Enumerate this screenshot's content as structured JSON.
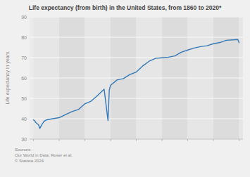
{
  "chart_data": {
    "type": "line",
    "title": "Life expectancy (from birth) in the United States, from 1860 to 2020*",
    "y_label": "Life expectancy in years",
    "source": "Sources:\nOur World in Data; Roser et al.\n© Statista 2024",
    "x": [
      1860,
      1861,
      1862,
      1863,
      1864,
      1865,
      1866,
      1867,
      1868,
      1869,
      1870,
      1875,
      1880,
      1885,
      1890,
      1895,
      1900,
      1905,
      1910,
      1915,
      1918,
      1919,
      1920,
      1925,
      1930,
      1935,
      1940,
      1945,
      1950,
      1955,
      1960,
      1965,
      1970,
      1975,
      1980,
      1985,
      1990,
      1995,
      2000,
      2005,
      2010,
      2015,
      2019,
      2020
    ],
    "values": [
      39.4,
      39.0,
      38.0,
      37.5,
      37.0,
      35.2,
      36.5,
      37.5,
      38.5,
      39.0,
      39.4,
      40.0,
      40.5,
      42.0,
      43.5,
      44.5,
      47.3,
      48.7,
      51.5,
      54.5,
      39.1,
      54.0,
      56.4,
      59.0,
      59.7,
      61.7,
      62.9,
      65.9,
      68.2,
      69.6,
      69.9,
      70.2,
      70.8,
      72.6,
      73.7,
      74.7,
      75.4,
      75.8,
      76.8,
      77.4,
      78.5,
      78.7,
      78.9,
      77.3
    ],
    "color": "#3479b7",
    "xlim": [
      1857,
      2023
    ],
    "xticks": [
      1860,
      1880,
      1900,
      1920,
      1940,
      1960,
      1980,
      2000,
      2020
    ],
    "ylim": [
      30,
      90
    ],
    "yticks": [
      30,
      40,
      50,
      60,
      70,
      80,
      90
    ],
    "grid": true,
    "tick_labels": "y"
  }
}
